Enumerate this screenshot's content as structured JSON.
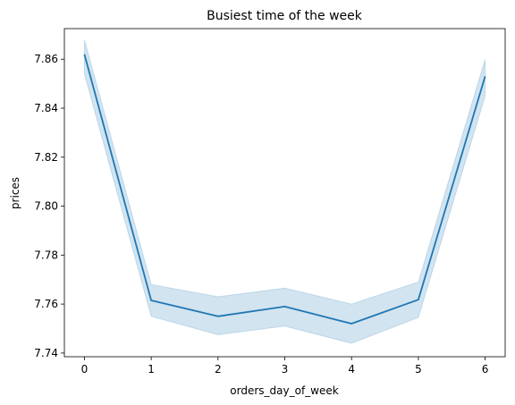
{
  "chart_data": {
    "type": "line",
    "title": "Busiest time of the week",
    "xlabel": "orders_day_of_week",
    "ylabel": "prices",
    "xlim": [
      -0.3,
      6.3
    ],
    "ylim": [
      7.7385,
      7.8725
    ],
    "x_ticks": [
      "0",
      "1",
      "2",
      "3",
      "4",
      "5",
      "6"
    ],
    "y_ticks": [
      "7.74",
      "7.76",
      "7.78",
      "7.80",
      "7.82",
      "7.84",
      "7.86"
    ],
    "grid": false,
    "series": [
      {
        "x": [
          0,
          1,
          2,
          3,
          4,
          5,
          6
        ],
        "y": [
          7.862,
          7.7615,
          7.755,
          7.759,
          7.752,
          7.7618,
          7.853
        ],
        "ci_low": [
          7.854,
          7.755,
          7.7475,
          7.751,
          7.744,
          7.7545,
          7.845
        ],
        "ci_high": [
          7.868,
          7.768,
          7.763,
          7.7665,
          7.76,
          7.769,
          7.86
        ],
        "color": "#1f77b4"
      }
    ]
  }
}
